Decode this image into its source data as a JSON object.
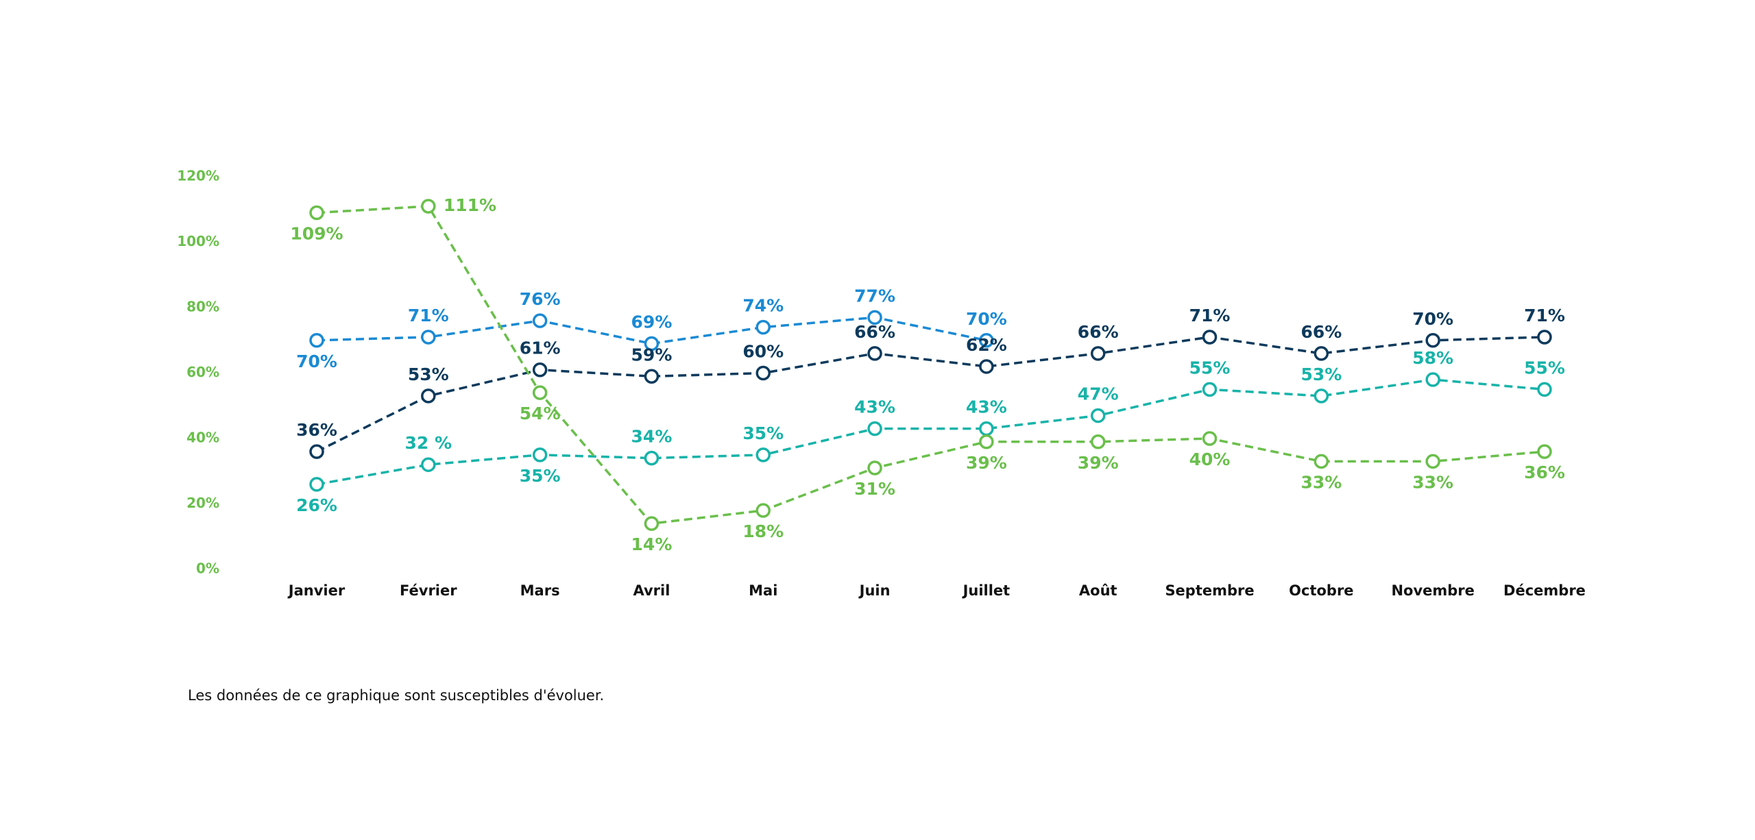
{
  "chart_data": {
    "type": "line",
    "categories": [
      "Janvier",
      "Février",
      "Mars",
      "Avril",
      "Mai",
      "Juin",
      "Juillet",
      "Août",
      "Septembre",
      "Octobre",
      "Novembre",
      "Décembre"
    ],
    "ylim": [
      0,
      120
    ],
    "yticks": [
      {
        "value": 0,
        "label": "0%"
      },
      {
        "value": 20,
        "label": "20%"
      },
      {
        "value": 40,
        "label": "40%"
      },
      {
        "value": 60,
        "label": "60%"
      },
      {
        "value": 80,
        "label": "80%"
      },
      {
        "value": 100,
        "label": "100%"
      },
      {
        "value": 120,
        "label": "120%"
      }
    ],
    "grid": false,
    "series": [
      {
        "color": "#1a8ad4",
        "values": [
          70,
          71,
          76,
          69,
          74,
          77,
          70,
          null,
          null,
          null,
          null,
          null
        ],
        "value_labels": [
          "70%",
          "71%",
          "76%",
          "69%",
          "74%",
          "77%",
          "70%",
          null,
          null,
          null,
          null,
          null
        ]
      },
      {
        "color": "#0d3a5c",
        "values": [
          36,
          53,
          61,
          59,
          60,
          66,
          62,
          66,
          71,
          66,
          70,
          71
        ],
        "value_labels": [
          "36%",
          "53%",
          "61%",
          "59%",
          "60%",
          "66%",
          "62%",
          "66%",
          "71%",
          "66%",
          "70%",
          "71%"
        ]
      },
      {
        "color": "#17b3a9",
        "values": [
          26,
          32,
          35,
          34,
          35,
          43,
          43,
          47,
          55,
          53,
          58,
          55
        ],
        "value_labels": [
          "26%",
          "32 %",
          "35%",
          "34%",
          "35%",
          "43%",
          "43%",
          "47%",
          "55%",
          "53%",
          "58%",
          "55%"
        ]
      },
      {
        "color": "#6abf4b",
        "values": [
          109,
          111,
          54,
          14,
          18,
          31,
          39,
          39,
          40,
          33,
          33,
          36
        ],
        "value_labels": [
          "109%",
          "111%",
          "54%",
          "14%",
          "18%",
          "31%",
          "39%",
          "39%",
          "40%",
          "33%",
          "33%",
          "36%"
        ]
      }
    ]
  },
  "note": "Les données de ce graphique sont susceptibles d'évoluer."
}
